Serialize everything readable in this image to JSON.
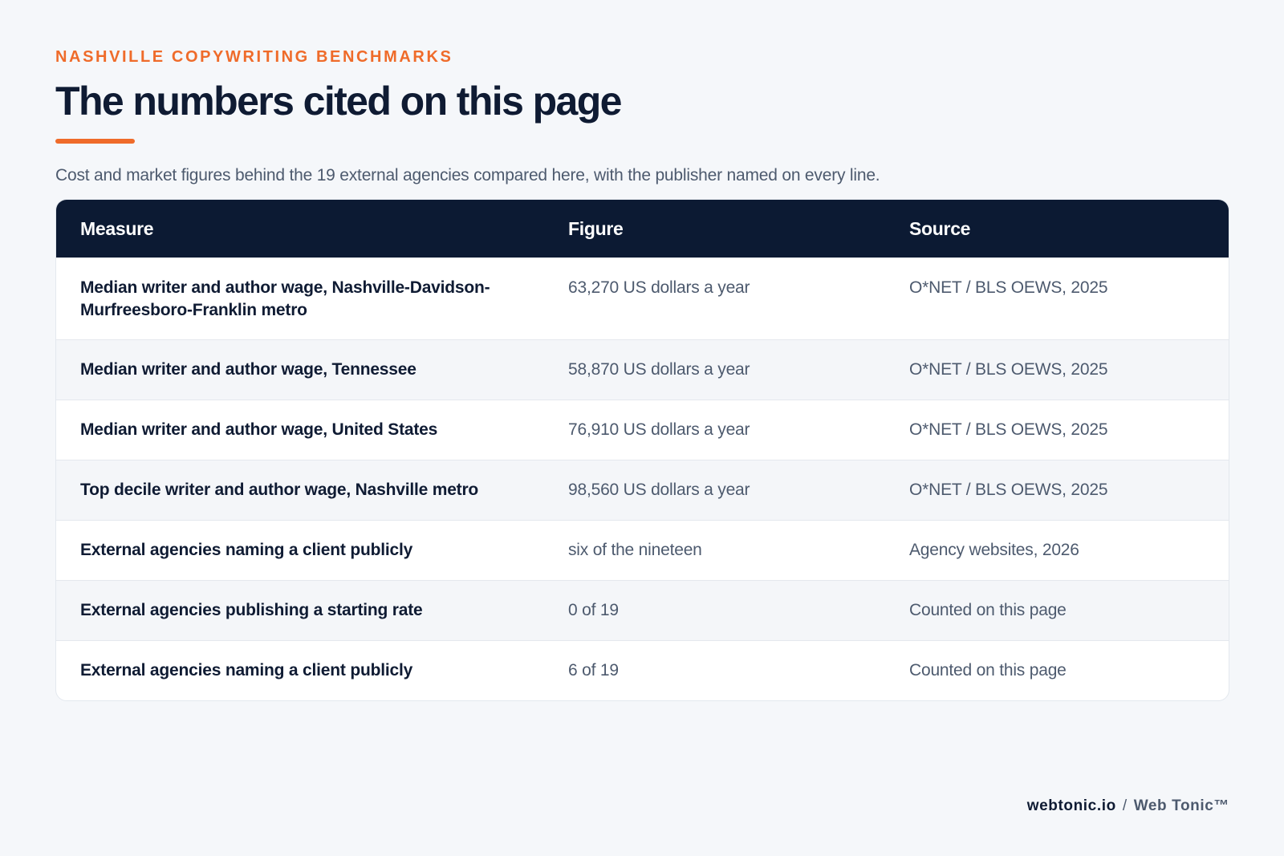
{
  "header": {
    "eyebrow": "NASHVILLE COPYWRITING BENCHMARKS",
    "title": "The numbers cited on this page",
    "subtitle": "Cost and market figures behind the 19 external agencies compared here, with the publisher named on every line."
  },
  "table": {
    "columns": [
      "Measure",
      "Figure",
      "Source"
    ],
    "rows": [
      {
        "measure": "Median writer and author wage, Nashville-Davidson-Murfreesboro-Franklin metro",
        "figure": "63,270 US dollars a year",
        "source": "O*NET / BLS OEWS, 2025"
      },
      {
        "measure": "Median writer and author wage, Tennessee",
        "figure": "58,870 US dollars a year",
        "source": "O*NET / BLS OEWS, 2025"
      },
      {
        "measure": "Median writer and author wage, United States",
        "figure": "76,910 US dollars a year",
        "source": "O*NET / BLS OEWS, 2025"
      },
      {
        "measure": "Top decile writer and author wage, Nashville metro",
        "figure": "98,560 US dollars a year",
        "source": "O*NET / BLS OEWS, 2025"
      },
      {
        "measure": "External agencies naming a client publicly",
        "figure": "six of the nineteen",
        "source": "Agency websites, 2026"
      },
      {
        "measure": "External agencies publishing a starting rate",
        "figure": "0 of 19",
        "source": "Counted on this page"
      },
      {
        "measure": "External agencies naming a client publicly",
        "figure": "6 of 19",
        "source": "Counted on this page"
      }
    ]
  },
  "footer": {
    "domain": "webtonic.io",
    "separator": "/",
    "brand": "Web Tonic™"
  },
  "colors": {
    "accent": "#ef6b2a",
    "header_bg": "#0c1a33",
    "page_bg": "#f5f7fa",
    "text_dark": "#0f1b33",
    "text_muted": "#4d5a6e"
  }
}
